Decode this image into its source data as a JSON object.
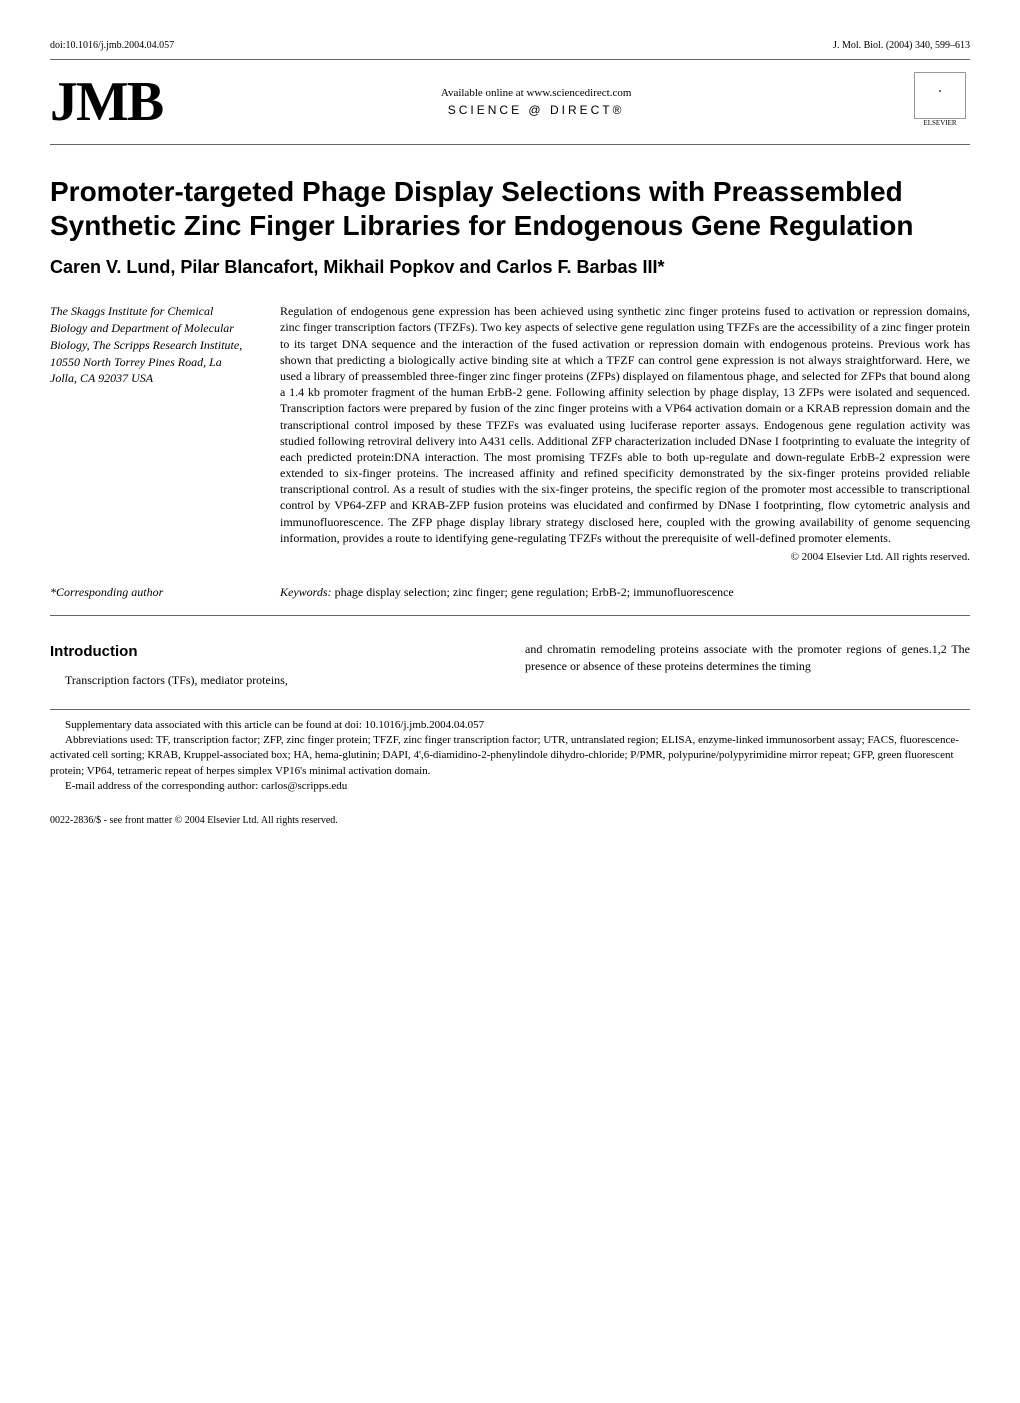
{
  "header": {
    "doi": "doi:10.1016/j.jmb.2004.04.057",
    "citation": "J. Mol. Biol. (2004) 340, 599–613"
  },
  "banner": {
    "logo_main": "JMB",
    "online": "Available online at www.sciencedirect.com",
    "sciencedirect": "SCIENCE @ DIRECT®",
    "publisher": "ELSEVIER"
  },
  "title": "Promoter-targeted Phage Display Selections with Preassembled Synthetic Zinc Finger Libraries for Endogenous Gene Regulation",
  "authors": "Caren V. Lund, Pilar Blancafort, Mikhail Popkov and Carlos F. Barbas III*",
  "affiliation": "The Skaggs Institute for Chemical Biology and Department of Molecular Biology, The Scripps Research Institute, 10550 North Torrey Pines Road, La Jolla, CA 92037 USA",
  "abstract": "Regulation of endogenous gene expression has been achieved using synthetic zinc finger proteins fused to activation or repression domains, zinc finger transcription factors (TFZFs). Two key aspects of selective gene regulation using TFZFs are the accessibility of a zinc finger protein to its target DNA sequence and the interaction of the fused activation or repression domain with endogenous proteins. Previous work has shown that predicting a biologically active binding site at which a TFZF can control gene expression is not always straightforward. Here, we used a library of preassembled three-finger zinc finger proteins (ZFPs) displayed on filamentous phage, and selected for ZFPs that bound along a 1.4 kb promoter fragment of the human ErbB-2 gene. Following affinity selection by phage display, 13 ZFPs were isolated and sequenced. Transcription factors were prepared by fusion of the zinc finger proteins with a VP64 activation domain or a KRAB repression domain and the transcriptional control imposed by these TFZFs was evaluated using luciferase reporter assays. Endogenous gene regulation activity was studied following retroviral delivery into A431 cells. Additional ZFP characterization included DNase I footprinting to evaluate the integrity of each predicted protein:DNA interaction. The most promising TFZFs able to both up-regulate and down-regulate ErbB-2 expression were extended to six-finger proteins. The increased affinity and refined specificity demonstrated by the six-finger proteins provided reliable transcriptional control. As a result of studies with the six-finger proteins, the specific region of the promoter most accessible to transcriptional control by VP64-ZFP and KRAB-ZFP fusion proteins was elucidated and confirmed by DNase I footprinting, flow cytometric analysis and immunofluorescence. The ZFP phage display library strategy disclosed here, coupled with the growing availability of genome sequencing information, provides a route to identifying gene-regulating TFZFs without the prerequisite of well-defined promoter elements.",
  "copyright": "© 2004 Elsevier Ltd. All rights reserved.",
  "corresponding": "*Corresponding author",
  "keywords_label": "Keywords:",
  "keywords": "phage display selection; zinc finger; gene regulation; ErbB-2; immunofluorescence",
  "intro": {
    "heading": "Introduction",
    "col1": "Transcription factors (TFs), mediator proteins,",
    "col2": "and chromatin remodeling proteins associate with the promoter regions of genes.1,2 The presence or absence of these proteins determines the timing"
  },
  "footer": {
    "supplementary": "Supplementary data associated with this article can be found at doi: 10.1016/j.jmb.2004.04.057",
    "abbreviations": "Abbreviations used: TF, transcription factor; ZFP, zinc finger protein; TFZF, zinc finger transcription factor; UTR, untranslated region; ELISA, enzyme-linked immunosorbent assay; FACS, fluorescence-activated cell sorting; KRAB, Kruppel-associated box; HA, hema-glutinin; DAPI, 4',6-diamidino-2-phenylindole dihydro-chloride; P/PMR, polypurine/polypyrimidine mirror repeat; GFP, green fluorescent protein; VP64, tetrameric repeat of herpes simplex VP16's minimal activation domain.",
    "email": "E-mail address of the corresponding author: carlos@scripps.edu"
  },
  "bottom": "0022-2836/$ - see front matter © 2004 Elsevier Ltd. All rights reserved."
}
